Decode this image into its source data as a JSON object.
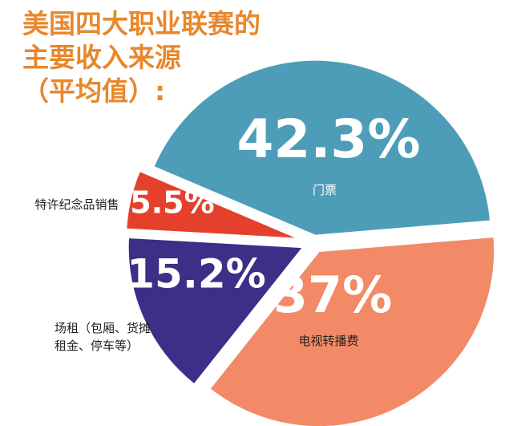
{
  "chart_data": {
    "type": "pie",
    "title": [
      "美国四大职业联赛的",
      "主要收入来源",
      "（平均值）:"
    ],
    "categories": [
      "门票",
      "电视转播费",
      "场租（包厢、货摊租金、停车等）",
      "特许纪念品销售"
    ],
    "values": [
      42.3,
      37,
      15.2,
      5.5
    ],
    "value_labels": [
      "42.3%",
      "37%",
      "15.2%",
      "5.5%"
    ],
    "colors": [
      "#4d9db9",
      "#f28a67",
      "#3b2f87",
      "#e4402b"
    ]
  }
}
